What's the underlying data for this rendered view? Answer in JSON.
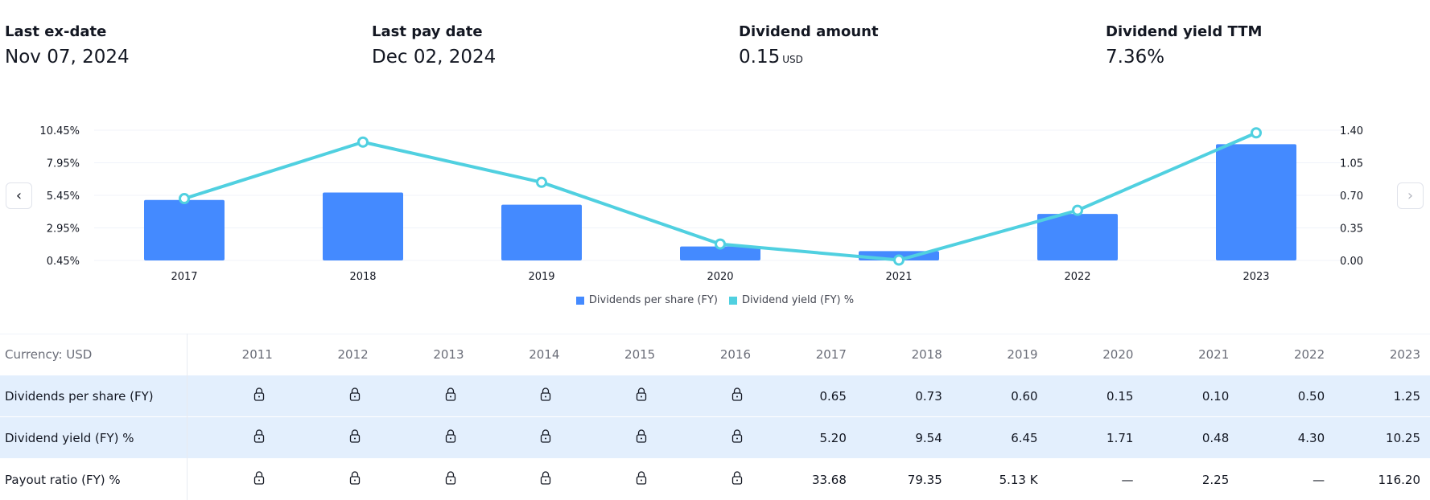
{
  "stats": [
    {
      "label": "Last ex-date",
      "value": "Nov 07, 2024"
    },
    {
      "label": "Last pay date",
      "value": "Dec 02, 2024"
    },
    {
      "label": "Dividend amount",
      "value": "0.15",
      "unit": "USD"
    },
    {
      "label": "Dividend yield TTM",
      "value": "7.36%"
    }
  ],
  "nav": {
    "prev_icon": "chevron-left-icon",
    "next_icon": "chevron-right-icon"
  },
  "chart_data": {
    "type": "bar+line",
    "categories": [
      "2017",
      "2018",
      "2019",
      "2020",
      "2021",
      "2022",
      "2023"
    ],
    "series": [
      {
        "name": "Dividends per share (FY)",
        "type": "bar",
        "axis": "right",
        "color": "#448aff",
        "values": [
          0.65,
          0.73,
          0.6,
          0.15,
          0.1,
          0.5,
          1.25
        ]
      },
      {
        "name": "Dividend yield (FY) %",
        "type": "line",
        "axis": "left",
        "color": "#50d0e0",
        "values": [
          5.2,
          9.54,
          6.45,
          1.71,
          0.48,
          4.3,
          10.25
        ]
      }
    ],
    "left_axis": {
      "ticks": [
        "10.45%",
        "7.95%",
        "5.45%",
        "2.95%",
        "0.45%"
      ],
      "range": [
        0.45,
        10.45
      ]
    },
    "right_axis": {
      "ticks": [
        "1.40",
        "1.05",
        "0.70",
        "0.35",
        "0.00"
      ],
      "range": [
        0,
        1.4
      ]
    },
    "grid": true,
    "legend": "bottom"
  },
  "table": {
    "corner": "Currency: USD",
    "years": [
      "2011",
      "2012",
      "2013",
      "2014",
      "2015",
      "2016",
      "2017",
      "2018",
      "2019",
      "2020",
      "2021",
      "2022",
      "2023"
    ],
    "rows": [
      {
        "label": "Dividends per share (FY)",
        "highlight": true,
        "values": [
          "lock",
          "lock",
          "lock",
          "lock",
          "lock",
          "lock",
          "0.65",
          "0.73",
          "0.60",
          "0.15",
          "0.10",
          "0.50",
          "1.25"
        ]
      },
      {
        "label": "Dividend yield (FY) %",
        "highlight": true,
        "values": [
          "lock",
          "lock",
          "lock",
          "lock",
          "lock",
          "lock",
          "5.20",
          "9.54",
          "6.45",
          "1.71",
          "0.48",
          "4.30",
          "10.25"
        ]
      },
      {
        "label": "Payout ratio (FY) %",
        "highlight": false,
        "values": [
          "lock",
          "lock",
          "lock",
          "lock",
          "lock",
          "lock",
          "33.68",
          "79.35",
          "5.13 K",
          "—",
          "2.25",
          "—",
          "116.20"
        ]
      }
    ]
  }
}
